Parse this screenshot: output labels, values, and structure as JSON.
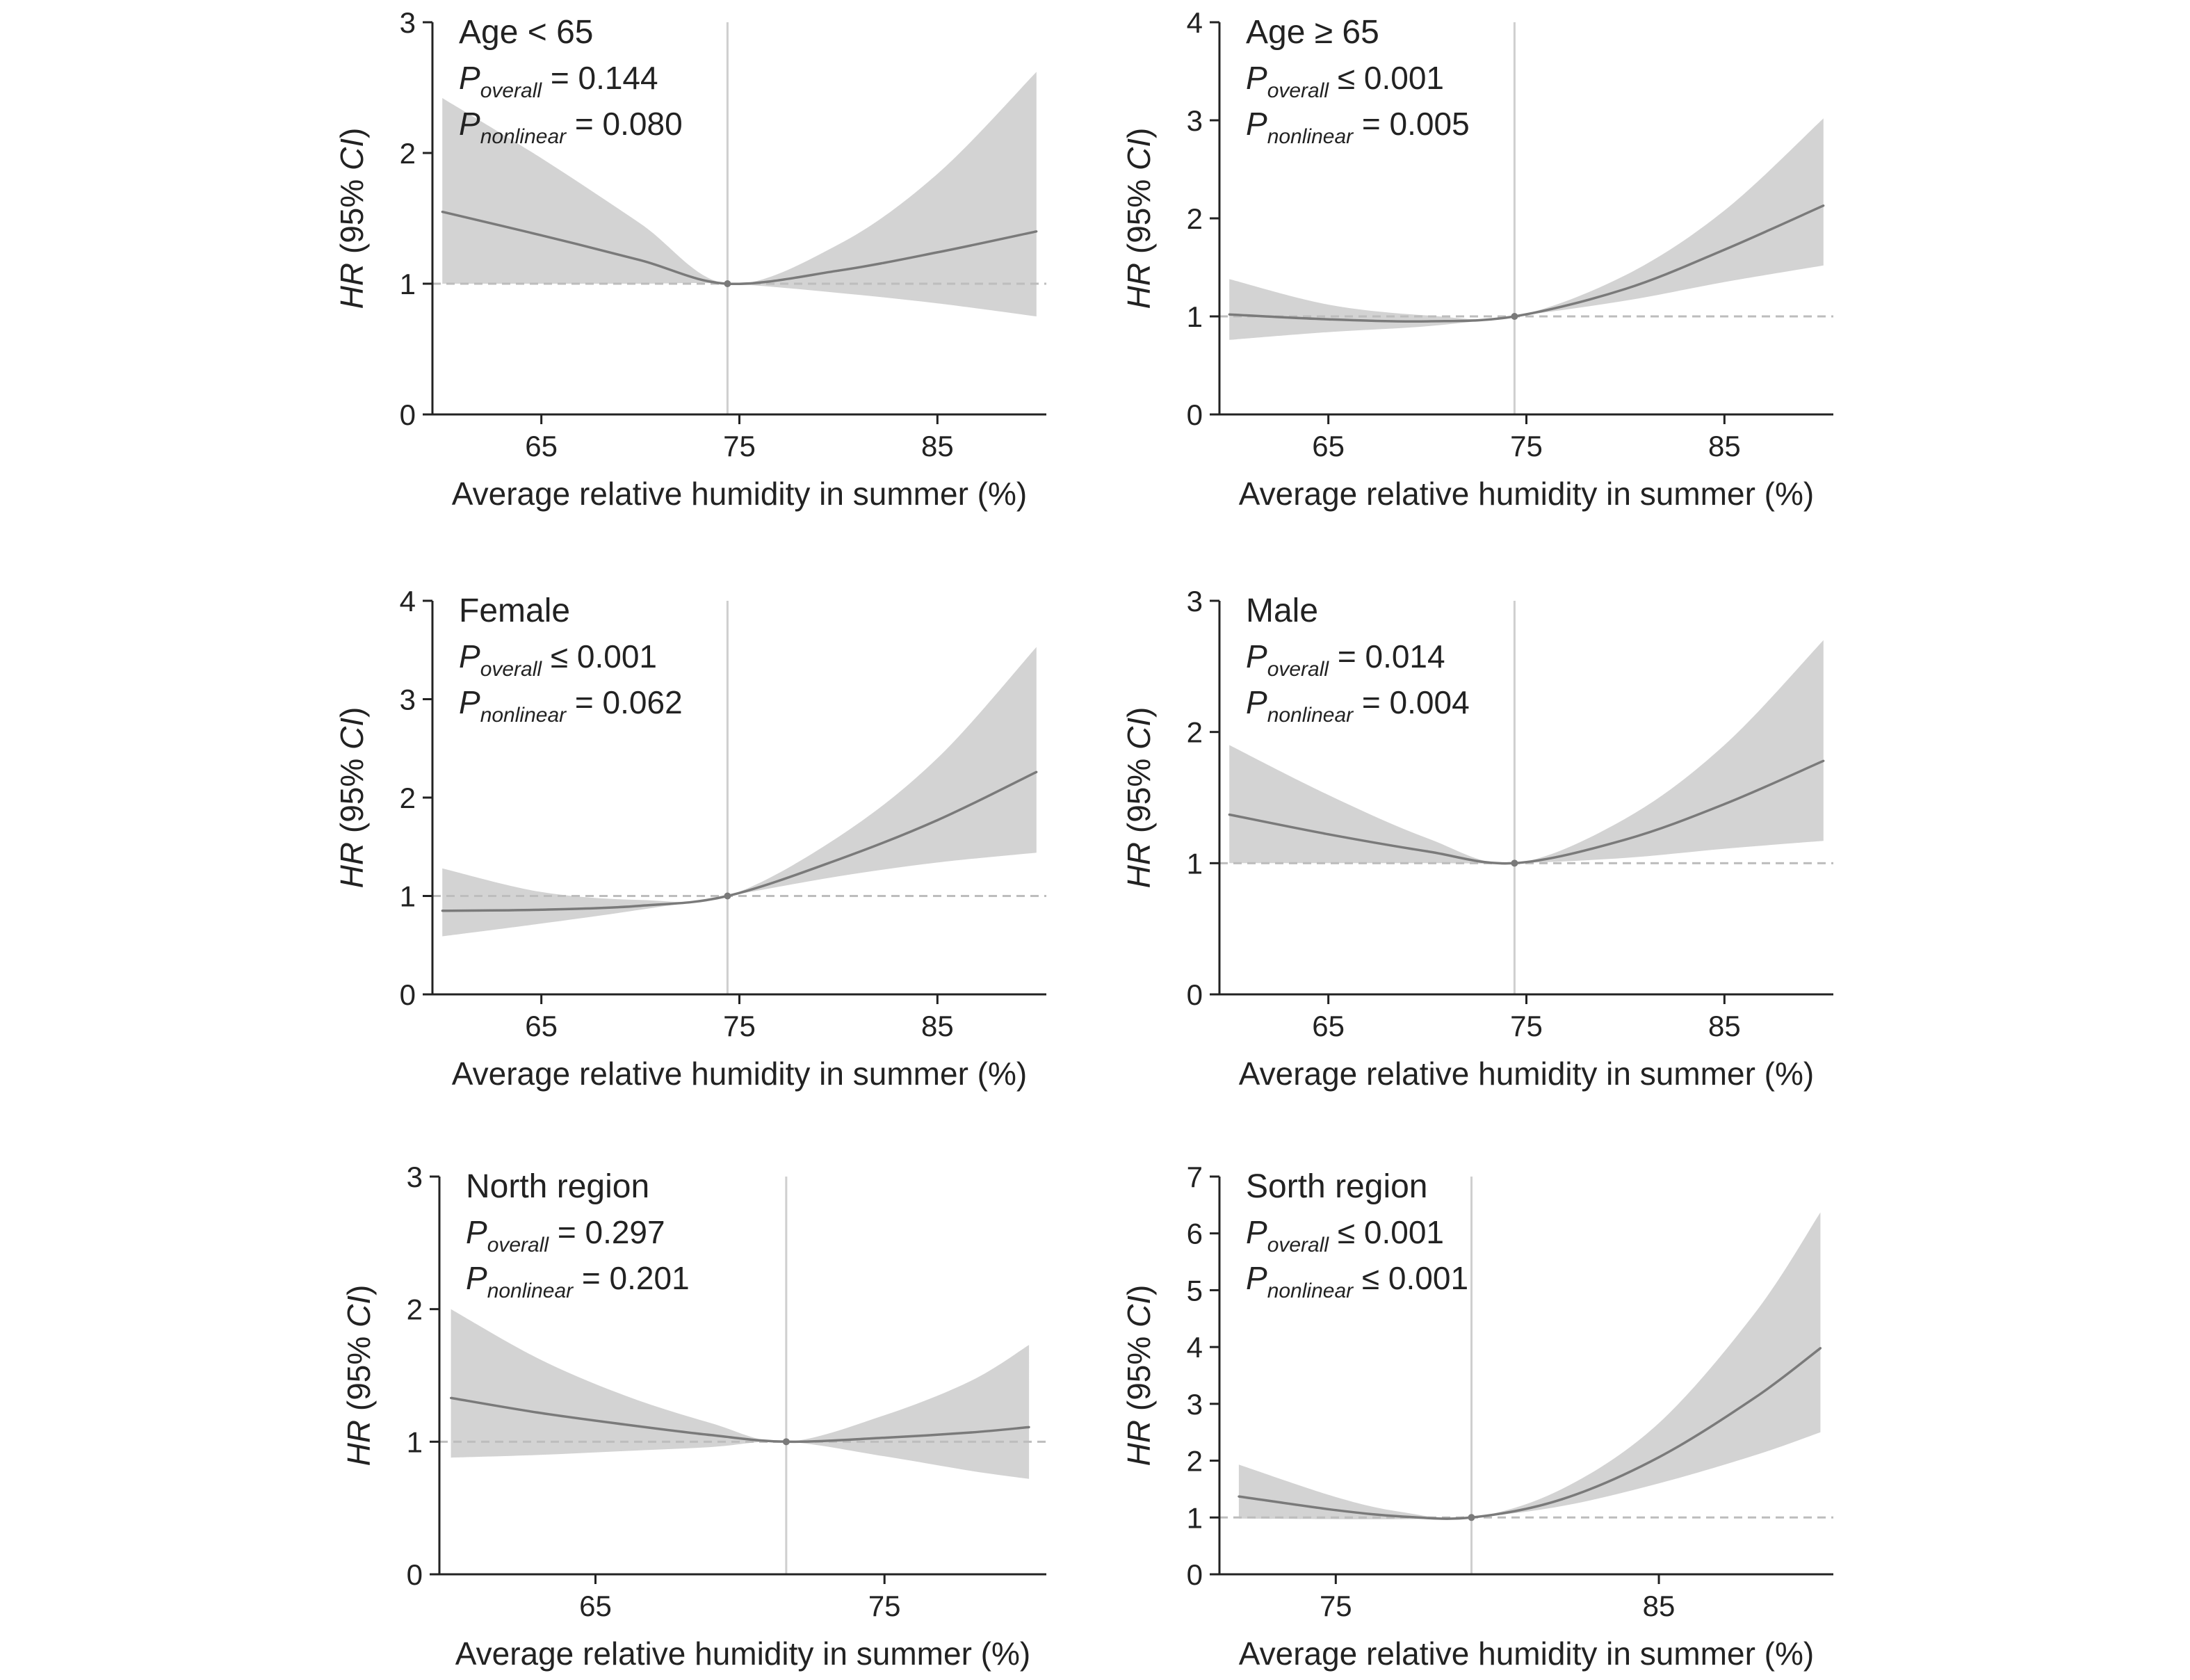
{
  "chart_data": [
    {
      "type": "line",
      "subgroup": "Age < 65",
      "stats": [
        {
          "sym": "P",
          "sub": "overall",
          "rest": " = 0.144"
        },
        {
          "sym": "P",
          "sub": "nonlinear",
          "rest": " = 0.080"
        }
      ],
      "xlabel": "Average relative humidity in summer (%)",
      "ylabel_parts": [
        "HR",
        " (95% ",
        "CI",
        ")"
      ],
      "xlim": [
        59.5,
        90.5
      ],
      "ylim": [
        0,
        3
      ],
      "xticks": [
        "65",
        "75",
        "85"
      ],
      "xtick_values": [
        65,
        75,
        85
      ],
      "yticks": [
        "0",
        "1",
        "2",
        "3"
      ],
      "ytick_values": [
        0,
        1,
        2,
        3
      ],
      "reference_x": 74.4,
      "reference_y": 1,
      "series": [
        {
          "role": "estimate",
          "x": [
            60,
            65,
            70,
            74.4,
            80,
            85,
            90
          ],
          "values": [
            1.55,
            1.37,
            1.18,
            1.0,
            1.1,
            1.24,
            1.4
          ]
        },
        {
          "role": "lower",
          "x": [
            60,
            65,
            70,
            74.4,
            80,
            85,
            90
          ],
          "values": [
            1.0,
            1.0,
            1.0,
            1.0,
            0.93,
            0.85,
            0.75
          ]
        },
        {
          "role": "upper",
          "x": [
            60,
            65,
            70,
            74.4,
            80,
            85,
            90
          ],
          "values": [
            2.42,
            1.96,
            1.46,
            1.0,
            1.3,
            1.84,
            2.62
          ]
        }
      ]
    },
    {
      "type": "line",
      "subgroup": "Age ≥ 65",
      "stats": [
        {
          "sym": "P",
          "sub": "overall",
          "rest": " ≤ 0.001"
        },
        {
          "sym": "P",
          "sub": "nonlinear",
          "rest": " = 0.005"
        }
      ],
      "xlabel": "Average relative humidity in summer (%)",
      "ylabel_parts": [
        "HR",
        " (95% ",
        "CI",
        ")"
      ],
      "xlim": [
        59.5,
        90.5
      ],
      "ylim": [
        0,
        4
      ],
      "xticks": [
        "65",
        "75",
        "85"
      ],
      "xtick_values": [
        65,
        75,
        85
      ],
      "yticks": [
        "0",
        "1",
        "2",
        "3",
        "4"
      ],
      "ytick_values": [
        0,
        1,
        2,
        3,
        4
      ],
      "reference_x": 74.4,
      "reference_y": 1,
      "series": [
        {
          "role": "estimate",
          "x": [
            60,
            65,
            70,
            74.4,
            80,
            85,
            90
          ],
          "values": [
            1.02,
            0.97,
            0.95,
            1.0,
            1.28,
            1.68,
            2.13
          ]
        },
        {
          "role": "lower",
          "x": [
            60,
            65,
            70,
            74.4,
            80,
            85,
            90
          ],
          "values": [
            0.76,
            0.84,
            0.9,
            1.0,
            1.16,
            1.35,
            1.52
          ]
        },
        {
          "role": "upper",
          "x": [
            60,
            65,
            70,
            74.4,
            80,
            85,
            90
          ],
          "values": [
            1.38,
            1.12,
            1.01,
            1.0,
            1.42,
            2.08,
            3.02
          ]
        }
      ]
    },
    {
      "type": "line",
      "subgroup": "Female",
      "stats": [
        {
          "sym": "P",
          "sub": "overall",
          "rest": " ≤ 0.001"
        },
        {
          "sym": "P",
          "sub": "nonlinear",
          "rest": " = 0.062"
        }
      ],
      "xlabel": "Average relative humidity in summer (%)",
      "ylabel_parts": [
        "HR",
        " (95% ",
        "CI",
        ")"
      ],
      "xlim": [
        59.5,
        90.5
      ],
      "ylim": [
        0,
        4
      ],
      "xticks": [
        "65",
        "75",
        "85"
      ],
      "xtick_values": [
        65,
        75,
        85
      ],
      "yticks": [
        "0",
        "1",
        "2",
        "3",
        "4"
      ],
      "ytick_values": [
        0,
        1,
        2,
        3,
        4
      ],
      "reference_x": 74.4,
      "reference_y": 1,
      "series": [
        {
          "role": "estimate",
          "x": [
            60,
            65,
            70,
            74.4,
            80,
            85,
            90
          ],
          "values": [
            0.85,
            0.86,
            0.9,
            1.0,
            1.37,
            1.77,
            2.26
          ]
        },
        {
          "role": "lower",
          "x": [
            60,
            65,
            70,
            74.4,
            80,
            85,
            90
          ],
          "values": [
            0.59,
            0.72,
            0.86,
            1.0,
            1.2,
            1.34,
            1.44
          ]
        },
        {
          "role": "upper",
          "x": [
            60,
            65,
            70,
            74.4,
            80,
            85,
            90
          ],
          "values": [
            1.28,
            1.04,
            0.96,
            1.0,
            1.6,
            2.4,
            3.53
          ]
        }
      ]
    },
    {
      "type": "line",
      "subgroup": "Male",
      "stats": [
        {
          "sym": "P",
          "sub": "overall",
          "rest": " = 0.014"
        },
        {
          "sym": "P",
          "sub": "nonlinear",
          "rest": " = 0.004"
        }
      ],
      "xlabel": "Average relative humidity in summer (%)",
      "ylabel_parts": [
        "HR",
        " (95% ",
        "CI",
        ")"
      ],
      "xlim": [
        59.5,
        90.5
      ],
      "ylim": [
        0,
        3
      ],
      "xticks": [
        "65",
        "75",
        "85"
      ],
      "xtick_values": [
        65,
        75,
        85
      ],
      "yticks": [
        "0",
        "1",
        "2",
        "3"
      ],
      "ytick_values": [
        0,
        1,
        2,
        3
      ],
      "reference_x": 74.4,
      "reference_y": 1,
      "series": [
        {
          "role": "estimate",
          "x": [
            60,
            65,
            70,
            74.4,
            80,
            85,
            90
          ],
          "values": [
            1.37,
            1.22,
            1.09,
            1.0,
            1.18,
            1.45,
            1.78
          ]
        },
        {
          "role": "lower",
          "x": [
            60,
            65,
            70,
            74.4,
            80,
            85,
            90
          ],
          "values": [
            1.0,
            1.0,
            1.0,
            1.0,
            1.04,
            1.11,
            1.17
          ]
        },
        {
          "role": "upper",
          "x": [
            60,
            65,
            70,
            74.4,
            80,
            85,
            90
          ],
          "values": [
            1.9,
            1.52,
            1.19,
            1.0,
            1.34,
            1.9,
            2.7
          ]
        }
      ]
    },
    {
      "type": "line",
      "subgroup": "North region",
      "stats": [
        {
          "sym": "P",
          "sub": "overall",
          "rest": " = 0.297"
        },
        {
          "sym": "P",
          "sub": "nonlinear",
          "rest": " = 0.201"
        }
      ],
      "xlabel": "Average relative humidity in summer (%)",
      "ylabel_parts": [
        "HR",
        " (95% ",
        "CI",
        ")"
      ],
      "xlim": [
        59.6,
        80.6
      ],
      "ylim": [
        0,
        3
      ],
      "xticks": [
        "65",
        "75"
      ],
      "xtick_values": [
        65,
        75
      ],
      "yticks": [
        "0",
        "1",
        "2",
        "3"
      ],
      "ytick_values": [
        0,
        1,
        2,
        3
      ],
      "reference_x": 71.6,
      "reference_y": 1,
      "series": [
        {
          "role": "estimate",
          "x": [
            60,
            63,
            66,
            69,
            71.6,
            75,
            78,
            80
          ],
          "values": [
            1.33,
            1.22,
            1.13,
            1.05,
            1.0,
            1.03,
            1.07,
            1.11
          ]
        },
        {
          "role": "lower",
          "x": [
            60,
            63,
            66,
            69,
            71.6,
            75,
            78,
            80
          ],
          "values": [
            0.88,
            0.9,
            0.93,
            0.96,
            1.0,
            0.89,
            0.78,
            0.72
          ]
        },
        {
          "role": "upper",
          "x": [
            60,
            63,
            66,
            69,
            71.6,
            75,
            78,
            80
          ],
          "values": [
            2.0,
            1.63,
            1.35,
            1.14,
            1.0,
            1.2,
            1.46,
            1.73
          ]
        }
      ]
    },
    {
      "type": "line",
      "subgroup": "Sorth region",
      "stats": [
        {
          "sym": "P",
          "sub": "overall",
          "rest": " ≤ 0.001"
        },
        {
          "sym": "P",
          "sub": "nonlinear",
          "rest": " ≤ 0.001"
        }
      ],
      "xlabel": "Average relative humidity in summer (%)",
      "ylabel_parts": [
        "HR",
        " (95% ",
        "CI",
        ")"
      ],
      "xlim": [
        71.4,
        90.4
      ],
      "ylim": [
        0,
        7
      ],
      "xticks": [
        "75",
        "85"
      ],
      "xtick_values": [
        75,
        85
      ],
      "yticks": [
        "0",
        "1",
        "2",
        "3",
        "4",
        "5",
        "6",
        "7"
      ],
      "ytick_values": [
        0,
        1,
        2,
        3,
        4,
        5,
        6,
        7
      ],
      "reference_x": 79.2,
      "reference_y": 1,
      "series": [
        {
          "role": "estimate",
          "x": [
            72,
            75,
            77,
            79.2,
            82,
            85,
            88,
            90
          ],
          "values": [
            1.37,
            1.13,
            1.02,
            1.0,
            1.32,
            2.06,
            3.12,
            3.98
          ]
        },
        {
          "role": "lower",
          "x": [
            72,
            75,
            77,
            79.2,
            82,
            85,
            88,
            90
          ],
          "values": [
            0.98,
            0.97,
            0.97,
            1.0,
            1.2,
            1.6,
            2.1,
            2.5
          ]
        },
        {
          "role": "upper",
          "x": [
            72,
            75,
            77,
            79.2,
            82,
            85,
            88,
            90
          ],
          "values": [
            1.93,
            1.36,
            1.1,
            1.0,
            1.5,
            2.66,
            4.62,
            6.37
          ]
        }
      ]
    }
  ]
}
